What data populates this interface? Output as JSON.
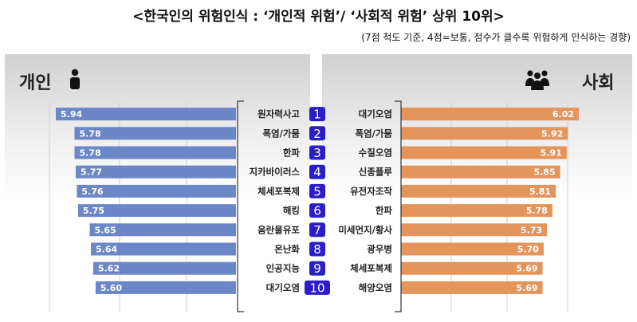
{
  "title": "<한국인의 위험인식 : ‘개인적 위험’/ ‘사회적 위험’ 상위 10위>",
  "subtitle": "(7점 척도 기준, 4점=보통, 점수가 클수록 위험하게 인식하는 경향)",
  "left_label": "개인",
  "right_label": "사회",
  "icons": {
    "left": "person-icon",
    "right": "group-icon"
  },
  "colors": {
    "personal": "#6b87c7",
    "social": "#e3955c",
    "rank_badge": "#2b1ec9"
  },
  "chart_data": [
    {
      "type": "bar",
      "orientation": "horizontal",
      "direction": "right-to-left",
      "name": "개인",
      "ranks": [
        "1",
        "2",
        "3",
        "4",
        "5",
        "6",
        "7",
        "8",
        "9",
        "10"
      ],
      "categories": [
        "원자력사고",
        "폭염/가뭄",
        "한파",
        "지카바이러스",
        "체세포복제",
        "해킹",
        "음란물유포",
        "온난화",
        "인공지능",
        "대기오염"
      ],
      "values": [
        5.94,
        5.78,
        5.78,
        5.77,
        5.76,
        5.75,
        5.65,
        5.64,
        5.62,
        5.6
      ],
      "value_labels": [
        "5.94",
        "5.78",
        "5.78",
        "5.77",
        "5.76",
        "5.75",
        "5.65",
        "5.64",
        "5.62",
        "5.60"
      ],
      "xlim": [
        4.4,
        6.1
      ],
      "grid": true
    },
    {
      "type": "bar",
      "orientation": "horizontal",
      "direction": "left-to-right",
      "name": "사회",
      "ranks": [
        "1",
        "2",
        "3",
        "4",
        "5",
        "6",
        "7",
        "8",
        "9",
        "10"
      ],
      "categories": [
        "대기오염",
        "폭염/가뭄",
        "수질오염",
        "신종플루",
        "유전자조작",
        "한파",
        "미세먼지/황사",
        "광우병",
        "체세포복제",
        "해양오염"
      ],
      "values": [
        6.02,
        5.92,
        5.91,
        5.85,
        5.81,
        5.78,
        5.73,
        5.7,
        5.69,
        5.69
      ],
      "value_labels": [
        "6.02",
        "5.92",
        "5.91",
        "5.85",
        "5.81",
        "5.78",
        "5.73",
        "5.70",
        "5.69",
        "5.69"
      ],
      "xlim": [
        4.4,
        6.1
      ],
      "grid": true
    }
  ]
}
